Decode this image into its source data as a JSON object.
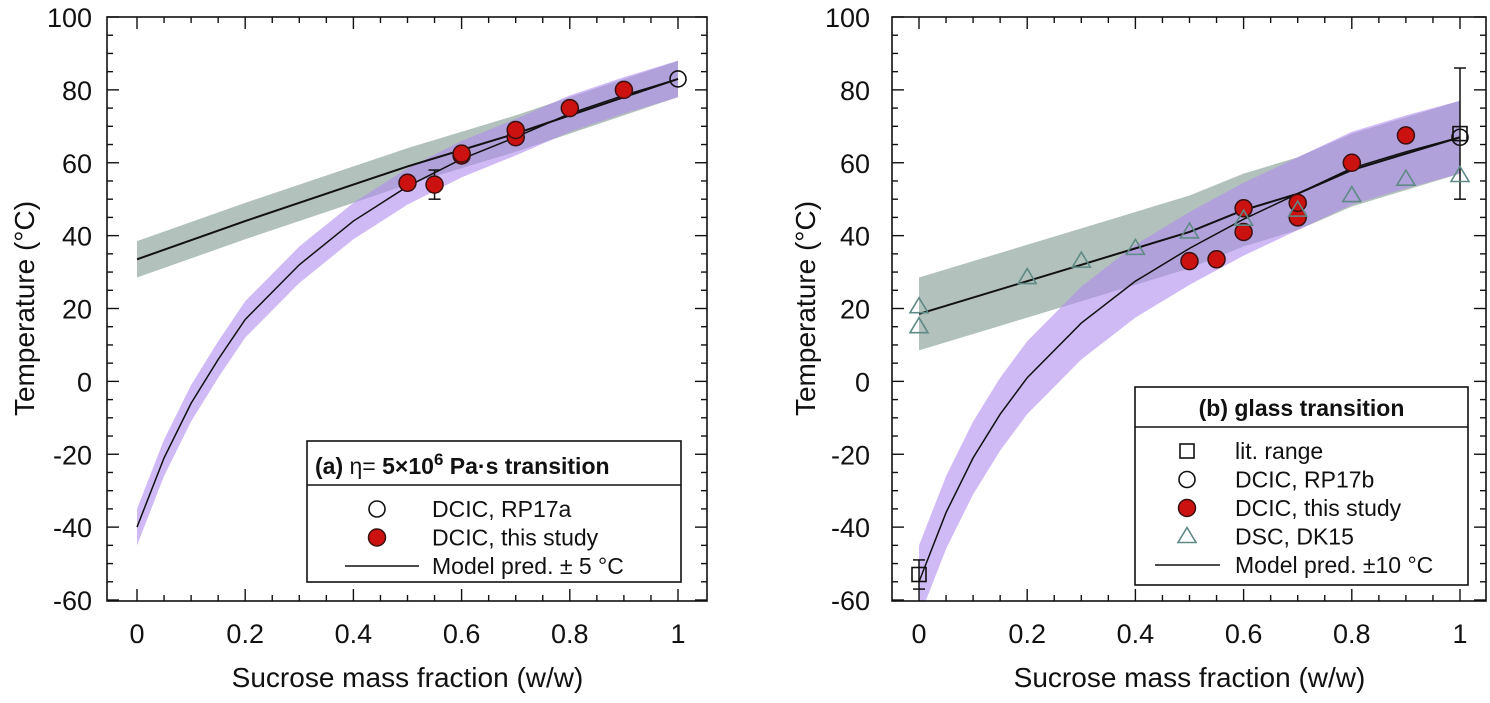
{
  "chart_data": [
    {
      "type": "scatter",
      "panel_title": "(a)  η= 5×10⁶ Pa·s transition",
      "panel_title_parts": {
        "prefix": "(a)",
        "eta": "η= 5×10",
        "exp": "6",
        "suffix": " Pa·s transition"
      },
      "xlabel": "Sucrose mass fraction (w/w)",
      "ylabel": "Temperature (°C)",
      "xlim": [
        0,
        1
      ],
      "ylim": [
        -60,
        100
      ],
      "xticks": [
        "0",
        "0.2",
        "0.4",
        "0.6",
        "0.8",
        "1"
      ],
      "yticks": [
        "100",
        "80",
        "60",
        "40",
        "20",
        "0",
        "-20",
        "-40",
        "-60"
      ],
      "legend_position": "bottom-right",
      "series": [
        {
          "name": "DCIC, RP17a",
          "marker": "open-circle",
          "points": [
            [
              1.0,
              83
            ]
          ]
        },
        {
          "name": "DCIC, this study",
          "marker": "filled-circle",
          "color": "#cc1111",
          "points": [
            [
              0.5,
              54.5
            ],
            [
              0.55,
              54
            ],
            [
              0.6,
              62
            ],
            [
              0.6,
              62.5
            ],
            [
              0.7,
              67
            ],
            [
              0.7,
              69
            ],
            [
              0.8,
              75
            ],
            [
              0.9,
              80
            ]
          ],
          "error_bars": [
            {
              "x": 0.55,
              "low": 50,
              "high": 58
            }
          ]
        },
        {
          "name": "Model pred. ± 5 °C",
          "marker": "line",
          "band": 5,
          "models": [
            {
              "band_color": "#9fb2aa",
              "points": [
                [
                  0,
                  33.5
                ],
                [
                  0.2,
                  44
                ],
                [
                  0.4,
                  54
                ],
                [
                  0.5,
                  59
                ],
                [
                  0.6,
                  63.5
                ],
                [
                  0.7,
                  68
                ],
                [
                  0.8,
                  73
                ],
                [
                  0.9,
                  78
                ],
                [
                  1,
                  83
                ]
              ]
            },
            {
              "band_color": "#b18cf0",
              "points": [
                [
                  0,
                  -40
                ],
                [
                  0.05,
                  -21
                ],
                [
                  0.1,
                  -6
                ],
                [
                  0.15,
                  6
                ],
                [
                  0.2,
                  17
                ],
                [
                  0.3,
                  32
                ],
                [
                  0.4,
                  44
                ],
                [
                  0.5,
                  53.5
                ],
                [
                  0.6,
                  61
                ],
                [
                  0.7,
                  67
                ],
                [
                  0.8,
                  73.5
                ],
                [
                  0.9,
                  78.5
                ],
                [
                  1,
                  83
                ]
              ]
            }
          ]
        }
      ]
    },
    {
      "type": "scatter",
      "panel_title": "(b) glass transition",
      "xlabel": "Sucrose mass fraction (w/w)",
      "ylabel": "Temperature (°C)",
      "xlim": [
        0,
        1
      ],
      "ylim": [
        -60,
        100
      ],
      "xticks": [
        "0",
        "0.2",
        "0.4",
        "0.6",
        "0.8",
        "1"
      ],
      "yticks": [
        "100",
        "80",
        "60",
        "40",
        "20",
        "0",
        "-20",
        "-40",
        "-60"
      ],
      "legend_position": "bottom-right",
      "series": [
        {
          "name": "lit. range",
          "marker": "open-square",
          "points": [
            [
              0,
              -53
            ],
            [
              1,
              68
            ]
          ],
          "error_bars": [
            {
              "x": 0,
              "low": -57,
              "high": -49
            },
            {
              "x": 1,
              "low": 50,
              "high": 86
            }
          ]
        },
        {
          "name": "DCIC, RP17b",
          "marker": "open-circle",
          "points": [
            [
              1.0,
              67
            ]
          ]
        },
        {
          "name": "DCIC, this study",
          "marker": "filled-circle",
          "color": "#cc1111",
          "points": [
            [
              0.5,
              33
            ],
            [
              0.55,
              33.5
            ],
            [
              0.6,
              41
            ],
            [
              0.6,
              47.5
            ],
            [
              0.7,
              45
            ],
            [
              0.7,
              49
            ],
            [
              0.8,
              60
            ],
            [
              0.9,
              67.5
            ]
          ]
        },
        {
          "name": "DSC, DK15",
          "marker": "open-triangle",
          "color": "#5f8a86",
          "points": [
            [
              0,
              20.5
            ],
            [
              0,
              15
            ],
            [
              0.2,
              28.5
            ],
            [
              0.3,
              33
            ],
            [
              0.4,
              36.5
            ],
            [
              0.5,
              41
            ],
            [
              0.6,
              44.5
            ],
            [
              0.7,
              47
            ],
            [
              0.8,
              51
            ],
            [
              0.9,
              55.5
            ],
            [
              1,
              56.5
            ]
          ]
        },
        {
          "name": "Model pred. ±10 °C",
          "marker": "line",
          "band": 10,
          "models": [
            {
              "band_color": "#9fb2aa",
              "points": [
                [
                  0,
                  18.5
                ],
                [
                  0.2,
                  27.5
                ],
                [
                  0.3,
                  32
                ],
                [
                  0.4,
                  36.5
                ],
                [
                  0.5,
                  41
                ],
                [
                  0.6,
                  47
                ],
                [
                  0.7,
                  51.5
                ],
                [
                  0.8,
                  58
                ],
                [
                  0.9,
                  62.5
                ],
                [
                  1,
                  67
                ]
              ]
            },
            {
              "band_color": "#b18cf0",
              "points": [
                [
                  0,
                  -55
                ],
                [
                  0.05,
                  -36
                ],
                [
                  0.1,
                  -21
                ],
                [
                  0.15,
                  -9
                ],
                [
                  0.2,
                  1
                ],
                [
                  0.3,
                  16
                ],
                [
                  0.4,
                  27.5
                ],
                [
                  0.5,
                  36.5
                ],
                [
                  0.6,
                  44.5
                ],
                [
                  0.7,
                  51.5
                ],
                [
                  0.8,
                  58.5
                ],
                [
                  0.9,
                  63
                ],
                [
                  1,
                  67
                ]
              ]
            }
          ]
        }
      ]
    }
  ]
}
